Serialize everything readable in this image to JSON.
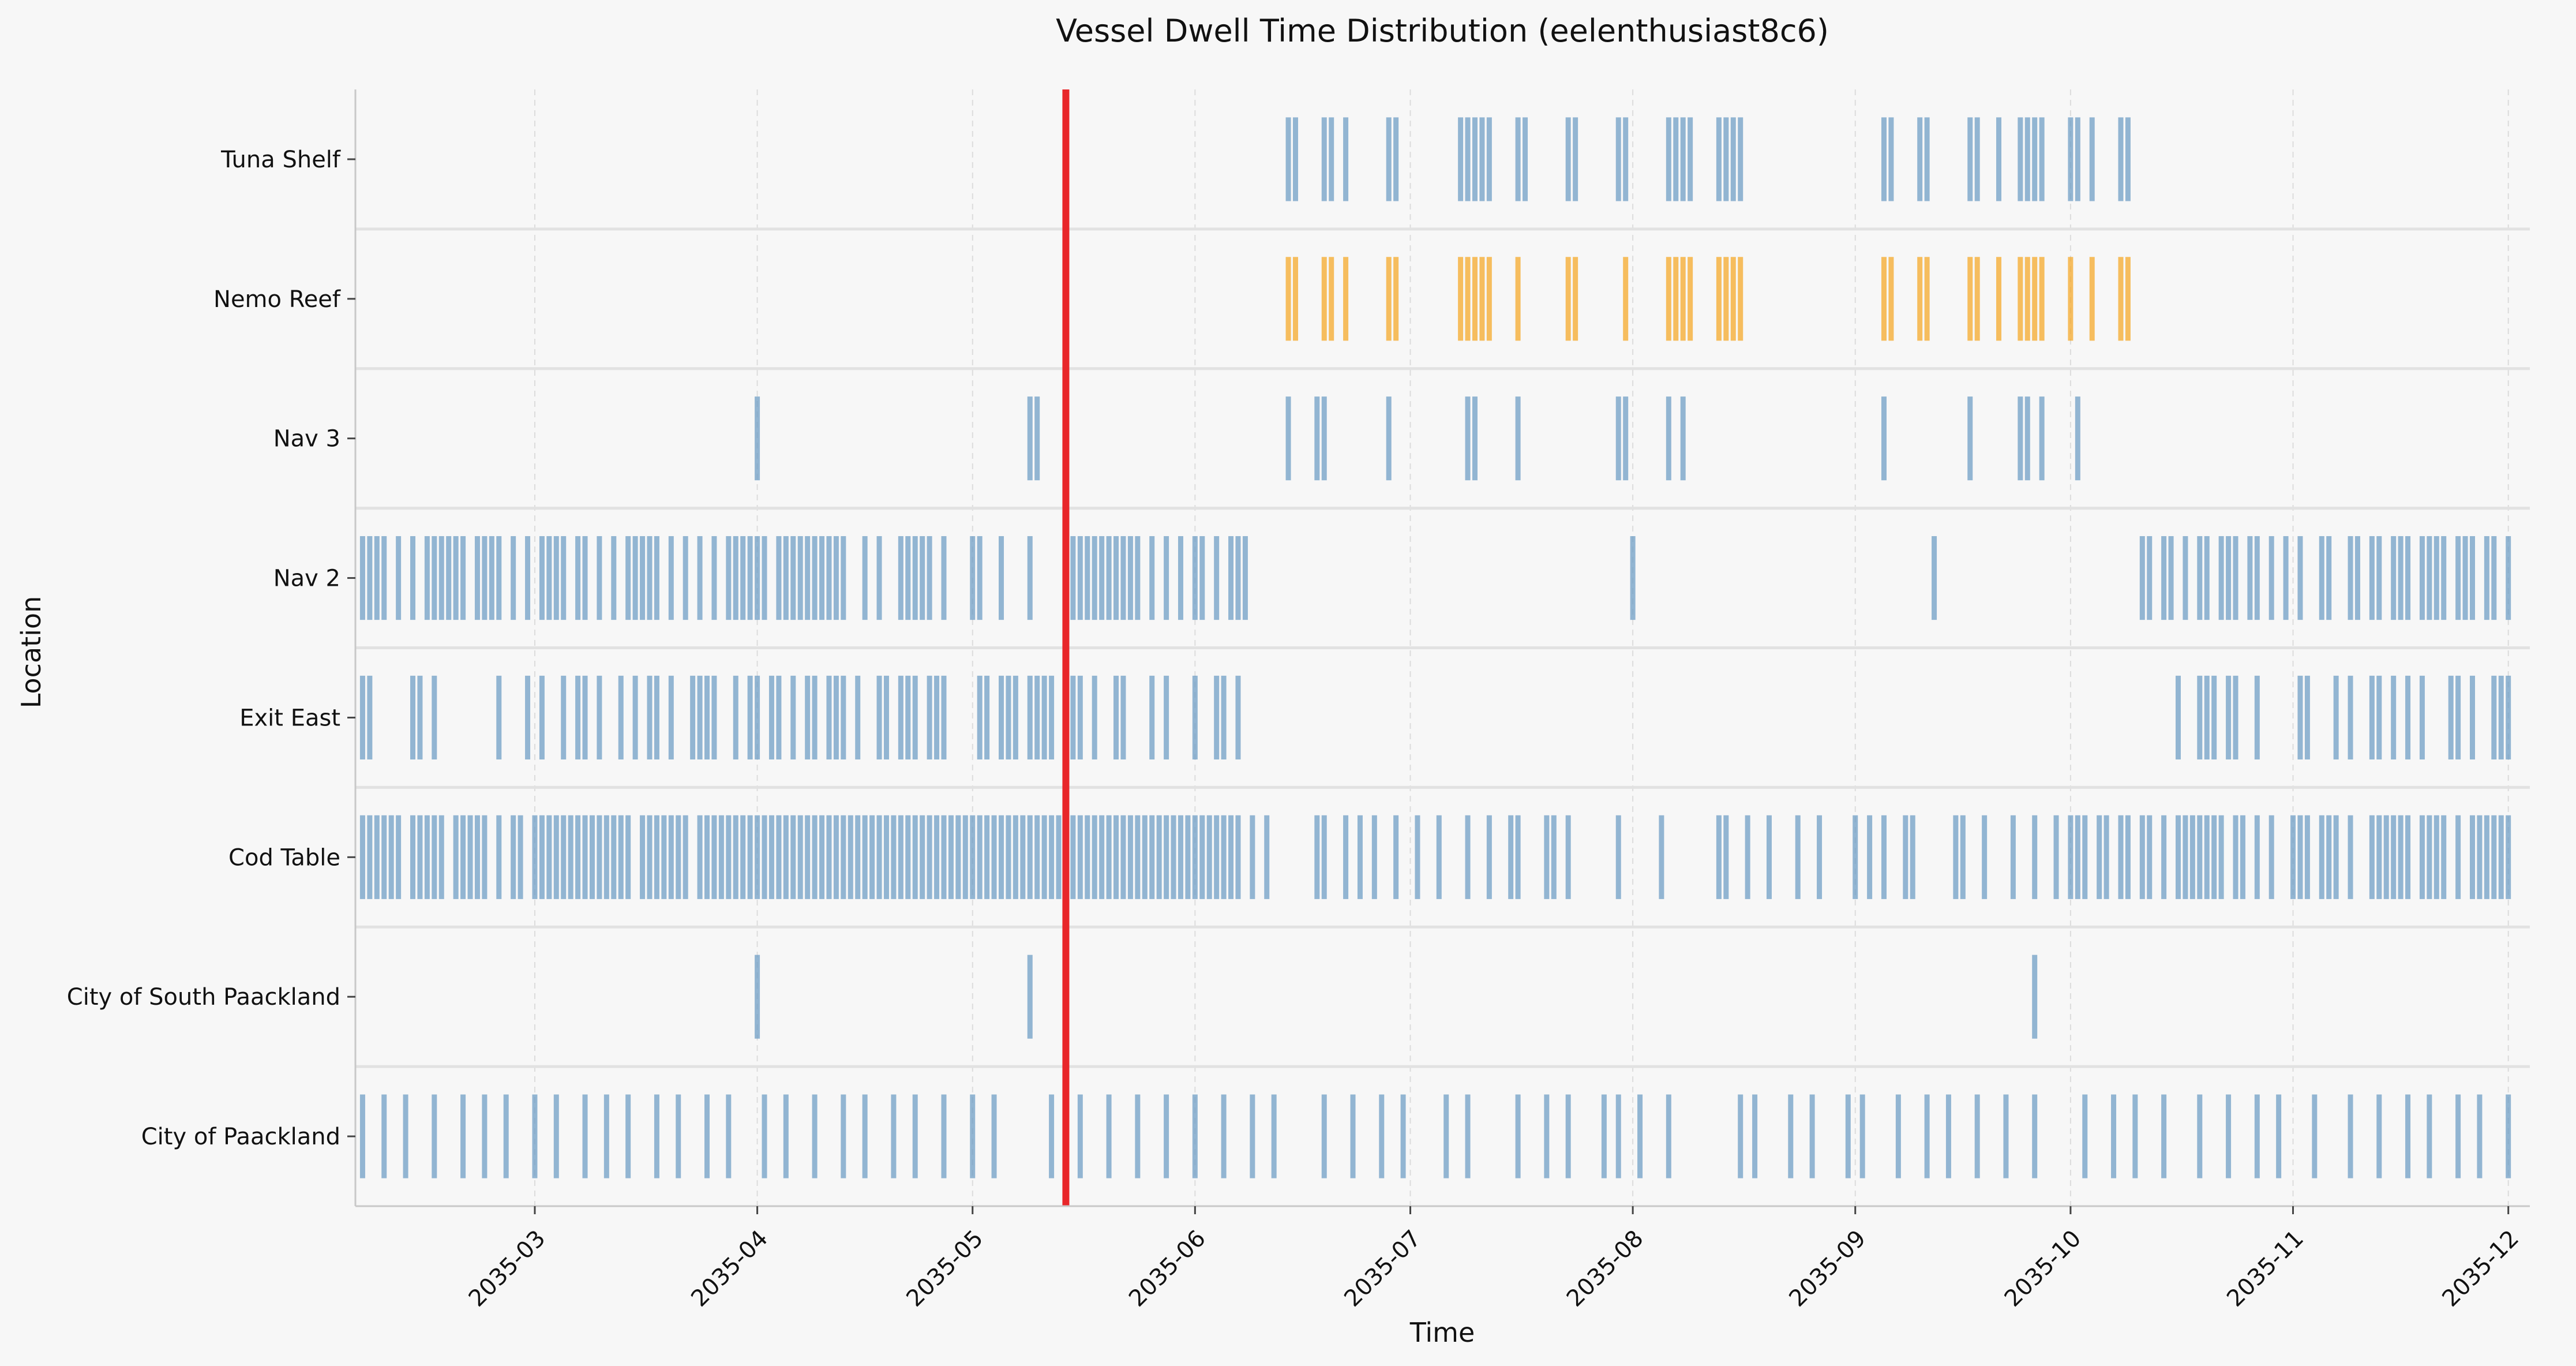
{
  "chart_data": {
    "type": "event_timeline",
    "title": "Vessel Dwell Time Distribution (eelenthusiast8c6)",
    "xlabel": "Time",
    "ylabel": "Location",
    "x_range": [
      "2035-02-04",
      "2035-12-04"
    ],
    "x_ticks": [
      "2035-03",
      "2035-04",
      "2035-05",
      "2035-06",
      "2035-07",
      "2035-08",
      "2035-09",
      "2035-10",
      "2035-11",
      "2035-12"
    ],
    "categories": [
      "City of Paackland",
      "City of South Paackland",
      "Cod Table",
      "Exit East",
      "Nav 2",
      "Nav 3",
      "Nemo Reef",
      "Tuna Shelf"
    ],
    "grid": "vertical dashed",
    "colors": {
      "default": "#6b9bc3",
      "Nemo Reef": "#f5a623",
      "marker": "#e8262a",
      "background": "#f7f7f7"
    },
    "marker_date": "2035-05-14",
    "series": [
      {
        "category": "City of Paackland",
        "dates": [
          "2035-02-05",
          "2035-02-08",
          "2035-02-11",
          "2035-02-15",
          "2035-02-19",
          "2035-02-22",
          "2035-02-25",
          "2035-03-01",
          "2035-03-04",
          "2035-03-08",
          "2035-03-11",
          "2035-03-14",
          "2035-03-18",
          "2035-03-21",
          "2035-03-25",
          "2035-03-28",
          "2035-04-02",
          "2035-04-05",
          "2035-04-09",
          "2035-04-13",
          "2035-04-16",
          "2035-04-20",
          "2035-04-23",
          "2035-04-27",
          "2035-05-01",
          "2035-05-04",
          "2035-05-12",
          "2035-05-16",
          "2035-05-20",
          "2035-05-24",
          "2035-05-28",
          "2035-06-01",
          "2035-06-05",
          "2035-06-09",
          "2035-06-12",
          "2035-06-19",
          "2035-06-23",
          "2035-06-27",
          "2035-06-30",
          "2035-07-06",
          "2035-07-09",
          "2035-07-16",
          "2035-07-20",
          "2035-07-23",
          "2035-07-28",
          "2035-07-30",
          "2035-08-02",
          "2035-08-06",
          "2035-08-16",
          "2035-08-18",
          "2035-08-23",
          "2035-08-26",
          "2035-08-31",
          "2035-09-02",
          "2035-09-07",
          "2035-09-11",
          "2035-09-14",
          "2035-09-18",
          "2035-09-22",
          "2035-09-26",
          "2035-10-03",
          "2035-10-07",
          "2035-10-10",
          "2035-10-14",
          "2035-10-19",
          "2035-10-23",
          "2035-10-27",
          "2035-10-30",
          "2035-11-04",
          "2035-11-09",
          "2035-11-13",
          "2035-11-17",
          "2035-11-20",
          "2035-11-24",
          "2035-11-27",
          "2035-12-01"
        ]
      },
      {
        "category": "City of South Paackland",
        "dates": [
          "2035-04-01",
          "2035-05-09",
          "2035-09-26"
        ]
      },
      {
        "category": "Cod Table",
        "dates": [
          "2035-02-05",
          "2035-02-06",
          "2035-02-07",
          "2035-02-08",
          "2035-02-09",
          "2035-02-10",
          "2035-02-12",
          "2035-02-13",
          "2035-02-14",
          "2035-02-15",
          "2035-02-16",
          "2035-02-18",
          "2035-02-19",
          "2035-02-20",
          "2035-02-21",
          "2035-02-22",
          "2035-02-24",
          "2035-02-26",
          "2035-02-27",
          "2035-03-01",
          "2035-03-02",
          "2035-03-03",
          "2035-03-04",
          "2035-03-05",
          "2035-03-06",
          "2035-03-07",
          "2035-03-08",
          "2035-03-09",
          "2035-03-10",
          "2035-03-11",
          "2035-03-12",
          "2035-03-13",
          "2035-03-14",
          "2035-03-16",
          "2035-03-17",
          "2035-03-18",
          "2035-03-19",
          "2035-03-20",
          "2035-03-21",
          "2035-03-22",
          "2035-03-24",
          "2035-03-25",
          "2035-03-26",
          "2035-03-27",
          "2035-03-28",
          "2035-03-29",
          "2035-03-30",
          "2035-03-31",
          "2035-04-01",
          "2035-04-02",
          "2035-04-03",
          "2035-04-04",
          "2035-04-05",
          "2035-04-06",
          "2035-04-07",
          "2035-04-08",
          "2035-04-09",
          "2035-04-10",
          "2035-04-11",
          "2035-04-12",
          "2035-04-13",
          "2035-04-14",
          "2035-04-15",
          "2035-04-16",
          "2035-04-17",
          "2035-04-18",
          "2035-04-19",
          "2035-04-20",
          "2035-04-21",
          "2035-04-22",
          "2035-04-23",
          "2035-04-24",
          "2035-04-25",
          "2035-04-26",
          "2035-04-27",
          "2035-04-28",
          "2035-04-29",
          "2035-04-30",
          "2035-05-01",
          "2035-05-02",
          "2035-05-03",
          "2035-05-04",
          "2035-05-05",
          "2035-05-06",
          "2035-05-07",
          "2035-05-08",
          "2035-05-09",
          "2035-05-10",
          "2035-05-11",
          "2035-05-12",
          "2035-05-13",
          "2035-05-14",
          "2035-05-15",
          "2035-05-16",
          "2035-05-17",
          "2035-05-18",
          "2035-05-19",
          "2035-05-20",
          "2035-05-21",
          "2035-05-22",
          "2035-05-23",
          "2035-05-24",
          "2035-05-25",
          "2035-05-26",
          "2035-05-27",
          "2035-05-28",
          "2035-05-29",
          "2035-05-30",
          "2035-05-31",
          "2035-06-01",
          "2035-06-02",
          "2035-06-03",
          "2035-06-04",
          "2035-06-05",
          "2035-06-06",
          "2035-06-07",
          "2035-06-09",
          "2035-06-11",
          "2035-06-18",
          "2035-06-19",
          "2035-06-22",
          "2035-06-24",
          "2035-06-26",
          "2035-06-29",
          "2035-07-02",
          "2035-07-05",
          "2035-07-09",
          "2035-07-12",
          "2035-07-15",
          "2035-07-16",
          "2035-07-20",
          "2035-07-21",
          "2035-07-23",
          "2035-07-30",
          "2035-08-05",
          "2035-08-13",
          "2035-08-14",
          "2035-08-17",
          "2035-08-20",
          "2035-08-24",
          "2035-08-27",
          "2035-09-01",
          "2035-09-03",
          "2035-09-05",
          "2035-09-08",
          "2035-09-09",
          "2035-09-15",
          "2035-09-16",
          "2035-09-19",
          "2035-09-23",
          "2035-09-26",
          "2035-09-29",
          "2035-10-01",
          "2035-10-02",
          "2035-10-03",
          "2035-10-05",
          "2035-10-06",
          "2035-10-08",
          "2035-10-09",
          "2035-10-11",
          "2035-10-12",
          "2035-10-14",
          "2035-10-16",
          "2035-10-17",
          "2035-10-18",
          "2035-10-19",
          "2035-10-20",
          "2035-10-21",
          "2035-10-22",
          "2035-10-24",
          "2035-10-25",
          "2035-10-27",
          "2035-10-29",
          "2035-11-01",
          "2035-11-02",
          "2035-11-03",
          "2035-11-05",
          "2035-11-06",
          "2035-11-07",
          "2035-11-09",
          "2035-11-12",
          "2035-11-13",
          "2035-11-14",
          "2035-11-15",
          "2035-11-16",
          "2035-11-17",
          "2035-11-19",
          "2035-11-20",
          "2035-11-21",
          "2035-11-22",
          "2035-11-24",
          "2035-11-26",
          "2035-11-27",
          "2035-11-28",
          "2035-11-29",
          "2035-11-30",
          "2035-12-01"
        ]
      },
      {
        "category": "Exit East",
        "dates": [
          "2035-02-05",
          "2035-02-06",
          "2035-02-12",
          "2035-02-13",
          "2035-02-15",
          "2035-02-24",
          "2035-02-28",
          "2035-03-02",
          "2035-03-05",
          "2035-03-07",
          "2035-03-08",
          "2035-03-10",
          "2035-03-13",
          "2035-03-15",
          "2035-03-17",
          "2035-03-18",
          "2035-03-20",
          "2035-03-23",
          "2035-03-24",
          "2035-03-25",
          "2035-03-26",
          "2035-03-29",
          "2035-03-31",
          "2035-04-01",
          "2035-04-03",
          "2035-04-04",
          "2035-04-06",
          "2035-04-08",
          "2035-04-09",
          "2035-04-11",
          "2035-04-12",
          "2035-04-13",
          "2035-04-15",
          "2035-04-18",
          "2035-04-19",
          "2035-04-21",
          "2035-04-22",
          "2035-04-23",
          "2035-04-25",
          "2035-04-26",
          "2035-04-27",
          "2035-05-02",
          "2035-05-03",
          "2035-05-05",
          "2035-05-06",
          "2035-05-07",
          "2035-05-09",
          "2035-05-10",
          "2035-05-11",
          "2035-05-12",
          "2035-05-15",
          "2035-05-16",
          "2035-05-18",
          "2035-05-21",
          "2035-05-22",
          "2035-05-26",
          "2035-05-28",
          "2035-06-01",
          "2035-06-04",
          "2035-06-05",
          "2035-06-07",
          "2035-10-16",
          "2035-10-19",
          "2035-10-20",
          "2035-10-21",
          "2035-10-23",
          "2035-10-24",
          "2035-10-27",
          "2035-11-02",
          "2035-11-03",
          "2035-11-07",
          "2035-11-09",
          "2035-11-12",
          "2035-11-13",
          "2035-11-15",
          "2035-11-17",
          "2035-11-19",
          "2035-11-23",
          "2035-11-24",
          "2035-11-26",
          "2035-11-29",
          "2035-11-30",
          "2035-12-01"
        ]
      },
      {
        "category": "Nav 2",
        "dates": [
          "2035-02-05",
          "2035-02-06",
          "2035-02-07",
          "2035-02-08",
          "2035-02-10",
          "2035-02-12",
          "2035-02-14",
          "2035-02-15",
          "2035-02-16",
          "2035-02-17",
          "2035-02-18",
          "2035-02-19",
          "2035-02-21",
          "2035-02-22",
          "2035-02-23",
          "2035-02-24",
          "2035-02-26",
          "2035-02-28",
          "2035-03-02",
          "2035-03-03",
          "2035-03-04",
          "2035-03-05",
          "2035-03-07",
          "2035-03-08",
          "2035-03-10",
          "2035-03-12",
          "2035-03-14",
          "2035-03-15",
          "2035-03-16",
          "2035-03-17",
          "2035-03-18",
          "2035-03-20",
          "2035-03-22",
          "2035-03-24",
          "2035-03-26",
          "2035-03-28",
          "2035-03-29",
          "2035-03-30",
          "2035-03-31",
          "2035-04-01",
          "2035-04-02",
          "2035-04-04",
          "2035-04-05",
          "2035-04-06",
          "2035-04-07",
          "2035-04-08",
          "2035-04-09",
          "2035-04-10",
          "2035-04-11",
          "2035-04-12",
          "2035-04-13",
          "2035-04-16",
          "2035-04-18",
          "2035-04-21",
          "2035-04-22",
          "2035-04-23",
          "2035-04-24",
          "2035-04-25",
          "2035-04-27",
          "2035-05-01",
          "2035-05-02",
          "2035-05-05",
          "2035-05-09",
          "2035-05-14",
          "2035-05-15",
          "2035-05-16",
          "2035-05-17",
          "2035-05-18",
          "2035-05-19",
          "2035-05-20",
          "2035-05-21",
          "2035-05-22",
          "2035-05-23",
          "2035-05-24",
          "2035-05-26",
          "2035-05-28",
          "2035-05-30",
          "2035-06-01",
          "2035-06-02",
          "2035-06-04",
          "2035-06-06",
          "2035-06-07",
          "2035-06-08",
          "2035-08-01",
          "2035-09-12",
          "2035-10-11",
          "2035-10-12",
          "2035-10-14",
          "2035-10-15",
          "2035-10-17",
          "2035-10-19",
          "2035-10-20",
          "2035-10-22",
          "2035-10-23",
          "2035-10-24",
          "2035-10-26",
          "2035-10-27",
          "2035-10-29",
          "2035-10-31",
          "2035-11-02",
          "2035-11-05",
          "2035-11-06",
          "2035-11-09",
          "2035-11-10",
          "2035-11-12",
          "2035-11-13",
          "2035-11-15",
          "2035-11-16",
          "2035-11-17",
          "2035-11-19",
          "2035-11-20",
          "2035-11-21",
          "2035-11-22",
          "2035-11-24",
          "2035-11-25",
          "2035-11-26",
          "2035-11-28",
          "2035-11-29",
          "2035-12-01"
        ]
      },
      {
        "category": "Nav 3",
        "dates": [
          "2035-04-01",
          "2035-05-09",
          "2035-05-10",
          "2035-06-14",
          "2035-06-18",
          "2035-06-19",
          "2035-06-28",
          "2035-07-09",
          "2035-07-10",
          "2035-07-16",
          "2035-07-30",
          "2035-07-31",
          "2035-08-06",
          "2035-08-08",
          "2035-09-05",
          "2035-09-17",
          "2035-09-24",
          "2035-09-25",
          "2035-09-27",
          "2035-10-02"
        ]
      },
      {
        "category": "Nemo Reef",
        "dates": [
          "2035-06-14",
          "2035-06-15",
          "2035-06-19",
          "2035-06-20",
          "2035-06-22",
          "2035-06-28",
          "2035-06-29",
          "2035-07-08",
          "2035-07-09",
          "2035-07-10",
          "2035-07-11",
          "2035-07-12",
          "2035-07-16",
          "2035-07-23",
          "2035-07-24",
          "2035-07-31",
          "2035-08-06",
          "2035-08-07",
          "2035-08-08",
          "2035-08-09",
          "2035-08-13",
          "2035-08-14",
          "2035-08-15",
          "2035-08-16",
          "2035-09-05",
          "2035-09-06",
          "2035-09-10",
          "2035-09-11",
          "2035-09-17",
          "2035-09-18",
          "2035-09-21",
          "2035-09-24",
          "2035-09-25",
          "2035-09-26",
          "2035-09-27",
          "2035-10-01",
          "2035-10-04",
          "2035-10-08",
          "2035-10-09"
        ]
      },
      {
        "category": "Tuna Shelf",
        "dates": [
          "2035-06-14",
          "2035-06-15",
          "2035-06-19",
          "2035-06-20",
          "2035-06-22",
          "2035-06-28",
          "2035-06-29",
          "2035-07-08",
          "2035-07-09",
          "2035-07-10",
          "2035-07-11",
          "2035-07-12",
          "2035-07-16",
          "2035-07-17",
          "2035-07-23",
          "2035-07-24",
          "2035-07-30",
          "2035-07-31",
          "2035-08-06",
          "2035-08-07",
          "2035-08-08",
          "2035-08-09",
          "2035-08-13",
          "2035-08-14",
          "2035-08-15",
          "2035-08-16",
          "2035-09-05",
          "2035-09-06",
          "2035-09-10",
          "2035-09-11",
          "2035-09-17",
          "2035-09-18",
          "2035-09-21",
          "2035-09-24",
          "2035-09-25",
          "2035-09-26",
          "2035-09-27",
          "2035-10-01",
          "2035-10-02",
          "2035-10-04",
          "2035-10-08",
          "2035-10-09"
        ]
      }
    ]
  }
}
